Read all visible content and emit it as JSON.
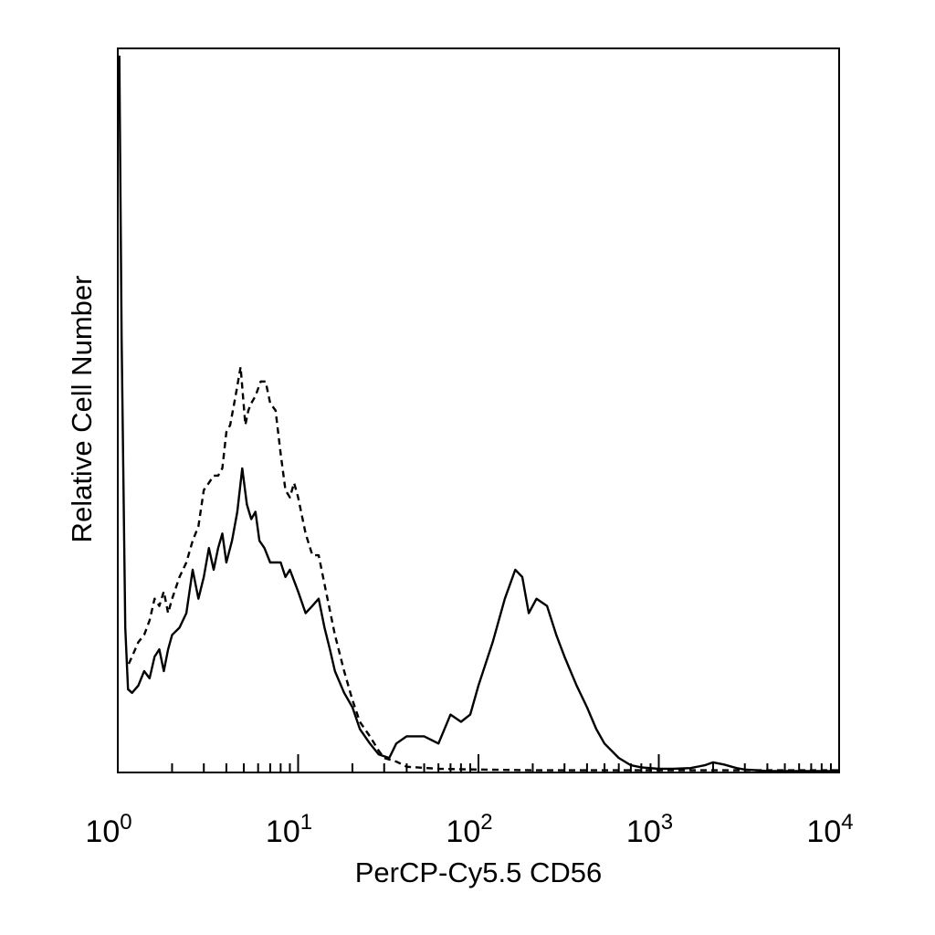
{
  "chart_data": {
    "type": "line",
    "title": "",
    "xlabel": "PerCP-Cy5.5 CD56",
    "ylabel": "Relative Cell Number",
    "x_scale": "log",
    "xlim": [
      1,
      10000
    ],
    "ylim": [
      0,
      100
    ],
    "x_ticks": [
      {
        "base": "10",
        "exp": "0",
        "value": 1
      },
      {
        "base": "10",
        "exp": "1",
        "value": 10
      },
      {
        "base": "10",
        "exp": "2",
        "value": 100
      },
      {
        "base": "10",
        "exp": "3",
        "value": 1000
      },
      {
        "base": "10",
        "exp": "4",
        "value": 10000
      }
    ],
    "grid": false,
    "legend": "none",
    "series": [
      {
        "style": "solid",
        "color": "#000000",
        "x": [
          1.02,
          1.05,
          1.1,
          1.14,
          1.2,
          1.3,
          1.4,
          1.5,
          1.6,
          1.7,
          1.8,
          1.9,
          2.0,
          2.2,
          2.4,
          2.6,
          2.8,
          3.0,
          3.2,
          3.4,
          3.6,
          3.8,
          4.0,
          4.3,
          4.6,
          4.9,
          5.2,
          5.5,
          5.8,
          6.1,
          6.5,
          7.0,
          7.5,
          8.0,
          8.5,
          9.0,
          10,
          11,
          12,
          13,
          14,
          15,
          16,
          18,
          20,
          22,
          25,
          28,
          32,
          35,
          40,
          45,
          50,
          60,
          70,
          80,
          90,
          100,
          120,
          140,
          160,
          175,
          190,
          210,
          240,
          270,
          300,
          350,
          400,
          450,
          500,
          600,
          700,
          800,
          1000,
          1200,
          1500,
          1800,
          2000,
          2300,
          2700,
          3000,
          3500,
          4000,
          5000,
          6000,
          8000,
          10000
        ],
        "y": [
          99,
          60,
          20,
          11.5,
          11,
          12,
          14,
          13,
          16,
          17,
          14,
          17,
          19,
          20,
          22,
          28,
          24,
          27,
          31,
          28,
          31,
          33,
          29,
          32,
          36,
          42,
          37,
          35,
          36,
          32,
          31,
          29,
          29,
          29,
          27,
          28,
          25,
          22,
          23,
          24,
          20,
          17,
          14,
          11,
          9,
          6,
          4,
          2.5,
          2,
          4,
          5,
          5,
          5,
          4,
          8,
          7,
          8,
          12,
          18,
          24,
          28,
          27,
          22,
          24,
          23,
          19,
          16,
          12,
          9,
          6,
          4,
          2,
          1,
          0.7,
          0.5,
          0.5,
          0.6,
          1.0,
          1.4,
          1.1,
          0.6,
          0.4,
          0.3,
          0.2,
          0.2,
          0.2,
          0.2,
          0.2
        ]
      },
      {
        "style": "dashed",
        "color": "#000000",
        "x": [
          1.15,
          1.2,
          1.3,
          1.4,
          1.5,
          1.6,
          1.7,
          1.8,
          1.9,
          2.0,
          2.2,
          2.4,
          2.6,
          2.8,
          3.0,
          3.2,
          3.4,
          3.6,
          3.8,
          4.0,
          4.2,
          4.5,
          4.8,
          5.1,
          5.3,
          5.5,
          5.8,
          6.2,
          6.6,
          7.0,
          7.5,
          8.0,
          8.5,
          9.0,
          9.5,
          10,
          11,
          12,
          13,
          14,
          16,
          18,
          20,
          22,
          25,
          28,
          30,
          35,
          40,
          60,
          100,
          200,
          400,
          1000,
          2000,
          5000,
          10000
        ],
        "y": [
          15,
          16,
          18,
          19,
          21,
          24,
          23,
          25,
          22,
          24,
          27,
          29,
          32,
          34,
          39,
          40,
          41,
          41,
          42,
          47,
          48,
          52,
          56,
          48,
          50,
          51,
          52,
          54,
          54,
          51,
          50,
          44,
          39,
          38,
          40,
          38,
          33,
          30,
          30,
          26,
          19,
          14,
          10,
          7,
          5,
          3,
          2,
          1.5,
          0.8,
          0.5,
          0.4,
          0.3,
          0.3,
          0.3,
          0.3,
          0.3,
          0.3
        ]
      }
    ]
  }
}
